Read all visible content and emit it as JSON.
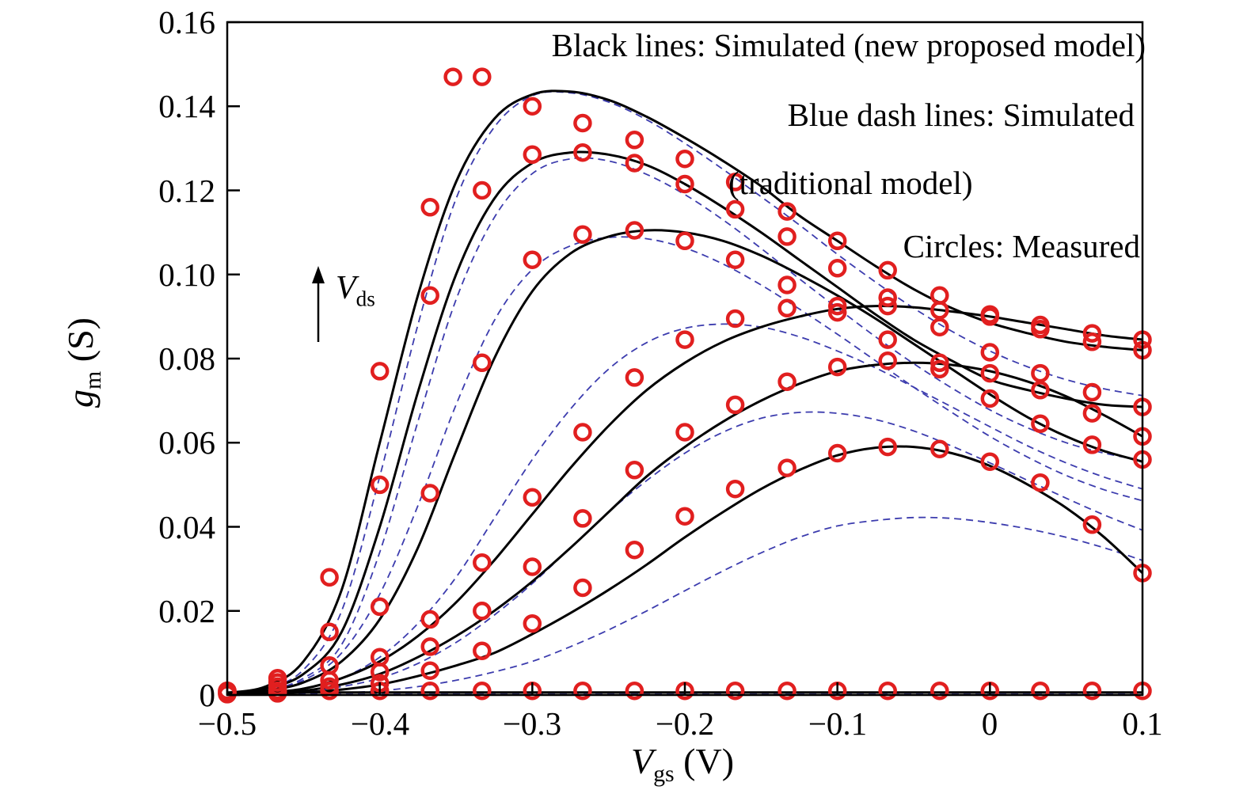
{
  "chart_data": {
    "type": "line",
    "title": "",
    "xlabel": {
      "var": "V",
      "sub": "gs",
      "unit": " (V)"
    },
    "ylabel": {
      "var": "g",
      "sub": "m",
      "unit": " (S)"
    },
    "xlim": [
      -0.5,
      0.1
    ],
    "ylim": [
      0,
      0.16
    ],
    "grid": false,
    "x_ticks": [
      -0.5,
      -0.4,
      -0.3,
      -0.2,
      -0.1,
      0,
      0.1
    ],
    "x_tick_labels": [
      "−0.5",
      "−0.4",
      "−0.3",
      "−0.2",
      "−0.1",
      "0",
      "0.1"
    ],
    "y_ticks": [
      0,
      0.02,
      0.04,
      0.06,
      0.08,
      0.1,
      0.12,
      0.14,
      0.16
    ],
    "y_tick_labels": [
      "0",
      "0.02",
      "0.04",
      "0.06",
      "0.08",
      "0.10",
      "0.12",
      "0.14",
      "0.16"
    ],
    "legend": {
      "line1": "Black lines: Simulated (new proposed model)",
      "line2": "Blue dash lines: Simulated",
      "line3": "(traditional model)",
      "line4": "Circles: Measured"
    },
    "arrow_label": {
      "var": "V",
      "sub": "ds"
    },
    "colors": {
      "solid": "#000000",
      "dash": "#3c3cae",
      "measured": "#e11f1f"
    },
    "x_line": [
      -0.5,
      -0.475,
      -0.45,
      -0.425,
      -0.4,
      -0.375,
      -0.35,
      -0.325,
      -0.3,
      -0.275,
      -0.25,
      -0.225,
      -0.2,
      -0.175,
      -0.15,
      -0.125,
      -0.1,
      -0.075,
      -0.05,
      -0.025,
      0,
      0.025,
      0.05,
      0.075,
      0.1
    ],
    "series_solid": [
      {
        "name": "new-model-vds-1",
        "values": [
          0.0005,
          0.002,
          0.008,
          0.025,
          0.06,
          0.095,
          0.122,
          0.137,
          0.1428,
          0.1435,
          0.1415,
          0.1375,
          0.1325,
          0.127,
          0.121,
          0.114,
          0.108,
          0.102,
          0.0965,
          0.092,
          0.0885,
          0.086,
          0.084,
          0.0828,
          0.082
        ]
      },
      {
        "name": "new-model-vds-2",
        "values": [
          0.0004,
          0.0015,
          0.005,
          0.015,
          0.04,
          0.072,
          0.1,
          0.118,
          0.1265,
          0.129,
          0.1285,
          0.126,
          0.1215,
          0.116,
          0.11,
          0.1035,
          0.097,
          0.0905,
          0.0845,
          0.0795,
          0.075,
          0.0725,
          0.0705,
          0.069,
          0.0685
        ]
      },
      {
        "name": "new-model-vds-3",
        "values": [
          0.0003,
          0.001,
          0.003,
          0.008,
          0.018,
          0.035,
          0.058,
          0.08,
          0.096,
          0.105,
          0.109,
          0.1105,
          0.11,
          0.108,
          0.1045,
          0.1,
          0.095,
          0.0895,
          0.0835,
          0.0775,
          0.0715,
          0.066,
          0.0615,
          0.058,
          0.0555
        ]
      },
      {
        "name": "new-model-vds-4",
        "values": [
          0.0002,
          0.0006,
          0.0015,
          0.004,
          0.008,
          0.014,
          0.022,
          0.032,
          0.043,
          0.054,
          0.064,
          0.0725,
          0.079,
          0.084,
          0.0875,
          0.09,
          0.0918,
          0.0925,
          0.0922,
          0.0912,
          0.09,
          0.0885,
          0.087,
          0.0855,
          0.0845
        ]
      },
      {
        "name": "new-model-vds-5",
        "values": [
          0.0001,
          0.0004,
          0.001,
          0.0025,
          0.005,
          0.009,
          0.014,
          0.02,
          0.027,
          0.035,
          0.0435,
          0.052,
          0.059,
          0.065,
          0.07,
          0.074,
          0.077,
          0.0785,
          0.079,
          0.0785,
          0.077,
          0.0745,
          0.071,
          0.0665,
          0.0615
        ]
      },
      {
        "name": "new-model-vds-6",
        "values": [
          0.0001,
          0.0002,
          0.0006,
          0.0013,
          0.0025,
          0.0045,
          0.007,
          0.01,
          0.0145,
          0.0195,
          0.025,
          0.031,
          0.0375,
          0.0435,
          0.049,
          0.0535,
          0.057,
          0.0588,
          0.059,
          0.0575,
          0.0545,
          0.05,
          0.0445,
          0.0375,
          0.029
        ]
      },
      {
        "name": "new-model-vds-7",
        "values": [
          0.0006,
          0.0006,
          0.0006,
          0.0006,
          0.0006,
          0.0006,
          0.0006,
          0.0006,
          0.0006,
          0.0006,
          0.0006,
          0.0006,
          0.0006,
          0.0006,
          0.0006,
          0.0006,
          0.0006,
          0.0006,
          0.0006,
          0.0006,
          0.0006,
          0.0006,
          0.0006,
          0.0006,
          0.0006
        ]
      }
    ],
    "series_dash": [
      {
        "name": "trad-model-vds-1",
        "values": [
          0.0004,
          0.0015,
          0.006,
          0.02,
          0.052,
          0.088,
          0.118,
          0.135,
          0.1425,
          0.1432,
          0.141,
          0.1368,
          0.1312,
          0.125,
          0.1185,
          0.1118,
          0.1048,
          0.0982,
          0.092,
          0.0865,
          0.0818,
          0.078,
          0.075,
          0.0728,
          0.0712
        ]
      },
      {
        "name": "trad-model-vds-2",
        "values": [
          0.0003,
          0.001,
          0.004,
          0.012,
          0.034,
          0.065,
          0.094,
          0.1135,
          0.124,
          0.1275,
          0.127,
          0.1238,
          0.119,
          0.113,
          0.1062,
          0.099,
          0.092,
          0.0852,
          0.0788,
          0.073,
          0.0678,
          0.0635,
          0.06,
          0.0575,
          0.0558
        ]
      },
      {
        "name": "trad-model-vds-3",
        "values": [
          0.0003,
          0.001,
          0.0035,
          0.01,
          0.024,
          0.045,
          0.069,
          0.089,
          0.1012,
          0.1068,
          0.1088,
          0.1085,
          0.1063,
          0.1025,
          0.0975,
          0.0918,
          0.0858,
          0.0795,
          0.0732,
          0.0672,
          0.0615,
          0.0565,
          0.0522,
          0.0488,
          0.0462
        ]
      },
      {
        "name": "trad-model-vds-4",
        "values": [
          0.0002,
          0.0005,
          0.0015,
          0.004,
          0.009,
          0.017,
          0.028,
          0.042,
          0.056,
          0.068,
          0.0775,
          0.0838,
          0.0872,
          0.0882,
          0.0875,
          0.0852,
          0.0818,
          0.0778,
          0.0732,
          0.0685,
          0.0638,
          0.0592,
          0.0552,
          0.0518,
          0.049
        ]
      },
      {
        "name": "trad-model-vds-5",
        "values": [
          0.0001,
          0.0003,
          0.0008,
          0.002,
          0.004,
          0.0075,
          0.0125,
          0.019,
          0.0265,
          0.035,
          0.0435,
          0.051,
          0.0575,
          0.0625,
          0.0658,
          0.0672,
          0.067,
          0.0655,
          0.0628,
          0.0592,
          0.0552,
          0.051,
          0.0468,
          0.0428,
          0.0392
        ]
      },
      {
        "name": "trad-model-vds-6",
        "values": [
          0,
          0.0001,
          0.0002,
          0.0005,
          0.001,
          0.002,
          0.0035,
          0.0055,
          0.008,
          0.0115,
          0.0155,
          0.02,
          0.0248,
          0.0295,
          0.0338,
          0.0375,
          0.0402,
          0.0415,
          0.0422,
          0.042,
          0.041,
          0.0395,
          0.0375,
          0.035,
          0.032
        ]
      },
      {
        "name": "trad-model-vds-7",
        "values": [
          0.0004,
          0.0004,
          0.0004,
          0.0004,
          0.0004,
          0.0004,
          0.0004,
          0.0004,
          0.0004,
          0.0004,
          0.0004,
          0.0004,
          0.0004,
          0.0004,
          0.0004,
          0.0004,
          0.0004,
          0.0004,
          0.0004,
          0.0004,
          0.0004,
          0.0004,
          0.0004,
          0.0004,
          0.0004
        ]
      }
    ],
    "x_measured": [
      -0.5,
      -0.467,
      -0.433,
      -0.4,
      -0.367,
      -0.333,
      -0.3,
      -0.267,
      -0.233,
      -0.2,
      -0.167,
      -0.133,
      -0.1,
      -0.067,
      -0.033,
      0,
      0.033,
      0.067,
      0.1
    ],
    "series_measured": [
      {
        "name": "measured-vds-1",
        "values": [
          0.001,
          0.004,
          0.028,
          0.077,
          0.116,
          0.147,
          0.14,
          0.136,
          0.132,
          0.1275,
          0.122,
          0.115,
          0.108,
          0.101,
          0.095,
          0.0905,
          0.087,
          0.084,
          0.082
        ]
      },
      {
        "name": "measured-vds-2",
        "values": [
          0.0008,
          0.003,
          0.015,
          0.05,
          0.095,
          0.12,
          0.1285,
          0.129,
          0.1265,
          0.1215,
          0.1155,
          0.109,
          0.1015,
          0.0945,
          0.0875,
          0.0815,
          0.0765,
          0.072,
          0.0685
        ]
      },
      {
        "name": "measured-vds-3",
        "values": [
          0.0006,
          0.002,
          0.007,
          0.021,
          0.048,
          0.079,
          0.1035,
          0.1095,
          0.1105,
          0.108,
          0.1035,
          0.0975,
          0.091,
          0.0845,
          0.0775,
          0.0705,
          0.0645,
          0.0595,
          0.056
        ]
      },
      {
        "name": "measured-vds-4",
        "values": [
          0.0004,
          0.001,
          0.0035,
          0.009,
          0.018,
          0.0315,
          0.047,
          0.0625,
          0.0755,
          0.0845,
          0.0895,
          0.092,
          0.0925,
          0.0925,
          0.0915,
          0.09,
          0.088,
          0.086,
          0.0845
        ]
      },
      {
        "name": "measured-vds-5",
        "values": [
          0.0003,
          0.0007,
          0.002,
          0.0055,
          0.0115,
          0.02,
          0.0305,
          0.042,
          0.0535,
          0.0625,
          0.069,
          0.0745,
          0.078,
          0.0795,
          0.079,
          0.0765,
          0.0725,
          0.067,
          0.0615
        ]
      },
      {
        "name": "measured-vds-6",
        "values": [
          0.0002,
          0.0004,
          0.001,
          0.0028,
          0.0058,
          0.0105,
          0.017,
          0.0255,
          0.0345,
          0.0425,
          0.049,
          0.054,
          0.0575,
          0.059,
          0.0585,
          0.0555,
          0.0505,
          0.0405,
          0.029
        ]
      },
      {
        "name": "measured-vds-7",
        "values": [
          0.001,
          0.001,
          0.001,
          0.001,
          0.001,
          0.001,
          0.001,
          0.001,
          0.001,
          0.001,
          0.001,
          0.001,
          0.001,
          0.001,
          0.001,
          0.001,
          0.001,
          0.001,
          0.001
        ]
      }
    ],
    "extra_measured": [
      {
        "x": -0.352,
        "y": 0.147
      }
    ]
  }
}
